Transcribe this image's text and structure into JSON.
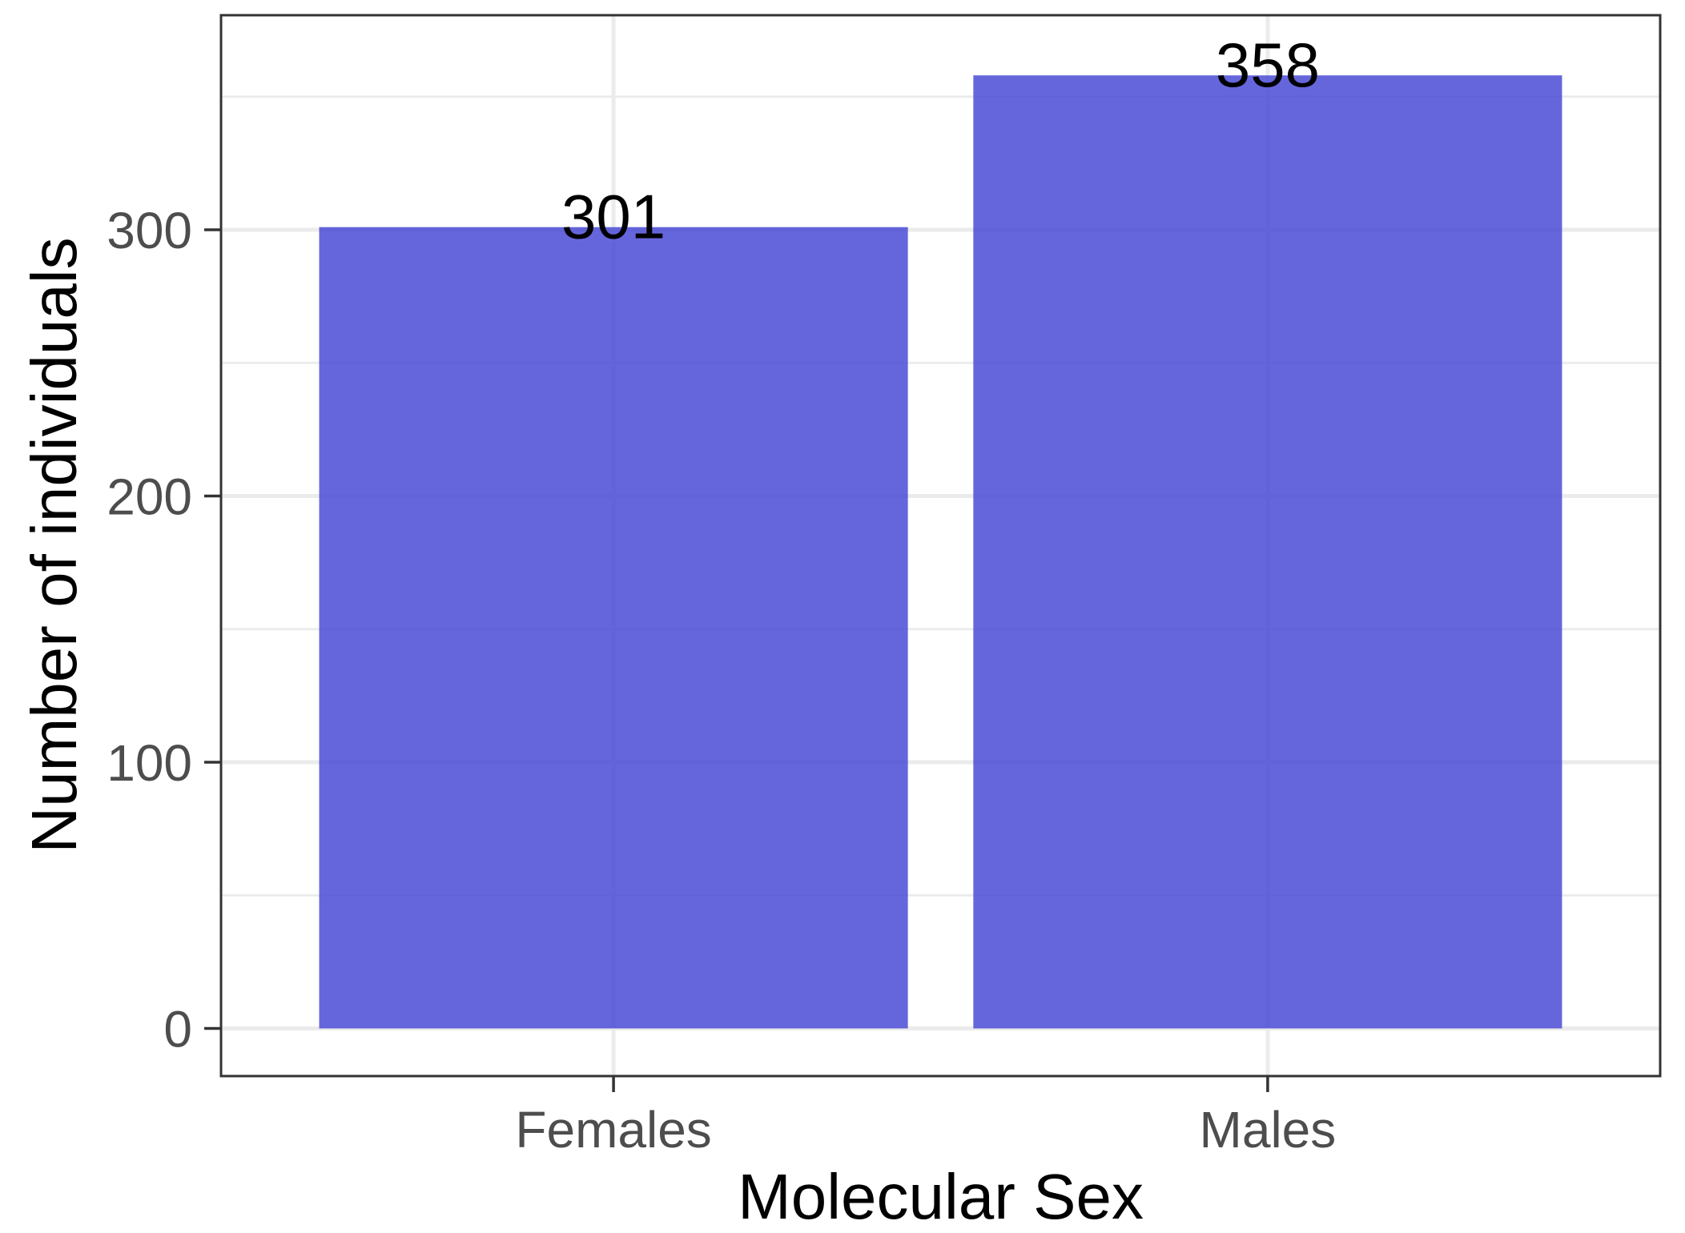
{
  "chart_data": {
    "type": "bar",
    "categories": [
      "Females",
      "Males"
    ],
    "values": [
      301,
      358
    ],
    "xlabel": "Molecular Sex",
    "ylabel": "Number of individuals",
    "ylim": [
      -17.9,
      380.6
    ],
    "yticks": [
      0,
      100,
      200,
      300
    ],
    "grid": true,
    "legend": "none",
    "data_labels_shown": true,
    "bar_color": "#4B4BD6"
  }
}
